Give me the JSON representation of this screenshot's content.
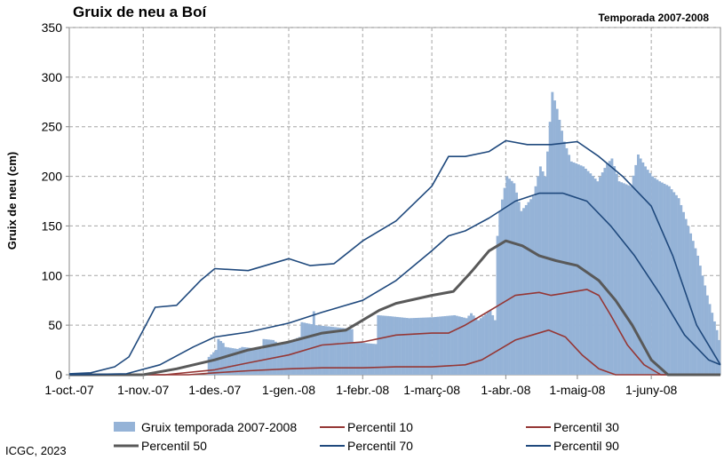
{
  "title": "Gruix de neu a Boí",
  "season_label": "Temporada 2007-2008",
  "credit": "ICGC, 2023",
  "chart_data": {
    "type": "bar",
    "title": "Gruix de neu a Boí",
    "subtitle": "Temporada 2007-2008",
    "ylabel": "Gruix de neu (cm)",
    "ylim": [
      0,
      350
    ],
    "yticks": [
      0,
      50,
      100,
      150,
      200,
      250,
      300,
      350
    ],
    "xlim": [
      "2007-10-01",
      "2008-06-30"
    ],
    "xticks": [
      {
        "label": "1-oct.-07",
        "date": "2007-10-01"
      },
      {
        "label": "1-nov.-07",
        "date": "2007-11-01"
      },
      {
        "label": "1-des.-07",
        "date": "2007-12-01"
      },
      {
        "label": "1-gen.-08",
        "date": "2008-01-01"
      },
      {
        "label": "1-febr.-08",
        "date": "2008-02-01"
      },
      {
        "label": "1-març-08",
        "date": "2008-03-01"
      },
      {
        "label": "1-abr.-08",
        "date": "2008-04-01"
      },
      {
        "label": "1-maig-08",
        "date": "2008-05-01"
      },
      {
        "label": "1-juny-08",
        "date": "2008-06-01"
      }
    ],
    "grid": true,
    "legend_position": "bottom",
    "series": [
      {
        "name": "Gruix temporada 2007-2008",
        "kind": "bar",
        "color": "#95b3d7",
        "points": [
          [
            "2007-10-01",
            0
          ],
          [
            "2007-11-27",
            0
          ],
          [
            "2007-11-28",
            18
          ],
          [
            "2007-12-01",
            25
          ],
          [
            "2007-12-02",
            36
          ],
          [
            "2007-12-04",
            32
          ],
          [
            "2007-12-05",
            28
          ],
          [
            "2007-12-10",
            26
          ],
          [
            "2007-12-12",
            28
          ],
          [
            "2007-12-20",
            26
          ],
          [
            "2007-12-21",
            36
          ],
          [
            "2007-12-25",
            35
          ],
          [
            "2007-12-28",
            30
          ],
          [
            "2008-01-05",
            38
          ],
          [
            "2008-01-06",
            53
          ],
          [
            "2008-01-10",
            51
          ],
          [
            "2008-01-11",
            64
          ],
          [
            "2008-01-12",
            50
          ],
          [
            "2008-01-20",
            48
          ],
          [
            "2008-01-27",
            46
          ],
          [
            "2008-01-28",
            33
          ],
          [
            "2008-02-06",
            31
          ],
          [
            "2008-02-07",
            60
          ],
          [
            "2008-02-12",
            59
          ],
          [
            "2008-02-20",
            57
          ],
          [
            "2008-03-01",
            58
          ],
          [
            "2008-03-10",
            60
          ],
          [
            "2008-03-15",
            57
          ],
          [
            "2008-03-17",
            62
          ],
          [
            "2008-03-20",
            55
          ],
          [
            "2008-03-25",
            65
          ],
          [
            "2008-03-27",
            55
          ],
          [
            "2008-03-28",
            140
          ],
          [
            "2008-03-29",
            165
          ],
          [
            "2008-04-01",
            200
          ],
          [
            "2008-04-04",
            193
          ],
          [
            "2008-04-07",
            165
          ],
          [
            "2008-04-12",
            180
          ],
          [
            "2008-04-15",
            210
          ],
          [
            "2008-04-17",
            200
          ],
          [
            "2008-04-18",
            225
          ],
          [
            "2008-04-20",
            285
          ],
          [
            "2008-04-22",
            268
          ],
          [
            "2008-04-25",
            235
          ],
          [
            "2008-04-28",
            215
          ],
          [
            "2008-05-03",
            210
          ],
          [
            "2008-05-06",
            203
          ],
          [
            "2008-05-09",
            195
          ],
          [
            "2008-05-13",
            213
          ],
          [
            "2008-05-15",
            218
          ],
          [
            "2008-05-18",
            195
          ],
          [
            "2008-05-23",
            190
          ],
          [
            "2008-05-26",
            222
          ],
          [
            "2008-05-29",
            210
          ],
          [
            "2008-06-01",
            200
          ],
          [
            "2008-06-04",
            195
          ],
          [
            "2008-06-08",
            190
          ],
          [
            "2008-06-12",
            178
          ],
          [
            "2008-06-16",
            150
          ],
          [
            "2008-06-20",
            120
          ],
          [
            "2008-06-24",
            80
          ],
          [
            "2008-06-28",
            45
          ],
          [
            "2008-06-30",
            25
          ]
        ]
      },
      {
        "name": "Percentil 10",
        "kind": "line",
        "color": "#953735",
        "points": [
          [
            "2007-10-01",
            0
          ],
          [
            "2007-11-20",
            0
          ],
          [
            "2007-12-01",
            2
          ],
          [
            "2007-12-15",
            4
          ],
          [
            "2008-01-01",
            6
          ],
          [
            "2008-01-15",
            7
          ],
          [
            "2008-02-01",
            7
          ],
          [
            "2008-02-15",
            8
          ],
          [
            "2008-03-01",
            8
          ],
          [
            "2008-03-15",
            10
          ],
          [
            "2008-03-22",
            15
          ],
          [
            "2008-03-29",
            25
          ],
          [
            "2008-04-05",
            35
          ],
          [
            "2008-04-12",
            40
          ],
          [
            "2008-04-19",
            45
          ],
          [
            "2008-04-26",
            38
          ],
          [
            "2008-05-03",
            20
          ],
          [
            "2008-05-10",
            6
          ],
          [
            "2008-05-17",
            0
          ],
          [
            "2008-06-30",
            0
          ]
        ]
      },
      {
        "name": "Percentil 30",
        "kind": "line",
        "color": "#953735",
        "points": [
          [
            "2007-10-01",
            0
          ],
          [
            "2007-11-10",
            0
          ],
          [
            "2007-12-01",
            5
          ],
          [
            "2007-12-15",
            12
          ],
          [
            "2008-01-01",
            20
          ],
          [
            "2008-01-15",
            30
          ],
          [
            "2008-02-01",
            33
          ],
          [
            "2008-02-15",
            40
          ],
          [
            "2008-03-01",
            42
          ],
          [
            "2008-03-08",
            42
          ],
          [
            "2008-03-15",
            50
          ],
          [
            "2008-03-22",
            60
          ],
          [
            "2008-03-29",
            70
          ],
          [
            "2008-04-05",
            80
          ],
          [
            "2008-04-15",
            83
          ],
          [
            "2008-04-20",
            80
          ],
          [
            "2008-04-25",
            82
          ],
          [
            "2008-05-05",
            86
          ],
          [
            "2008-05-10",
            80
          ],
          [
            "2008-05-15",
            60
          ],
          [
            "2008-05-22",
            30
          ],
          [
            "2008-05-29",
            10
          ],
          [
            "2008-06-05",
            0
          ],
          [
            "2008-06-30",
            0
          ]
        ]
      },
      {
        "name": "Percentil 50",
        "kind": "line",
        "color": "#595959",
        "points": [
          [
            "2007-10-01",
            0
          ],
          [
            "2007-11-01",
            0
          ],
          [
            "2007-11-15",
            6
          ],
          [
            "2007-12-01",
            15
          ],
          [
            "2007-12-15",
            25
          ],
          [
            "2008-01-01",
            33
          ],
          [
            "2008-01-15",
            42
          ],
          [
            "2008-01-25",
            45
          ],
          [
            "2008-02-01",
            55
          ],
          [
            "2008-02-08",
            65
          ],
          [
            "2008-02-15",
            72
          ],
          [
            "2008-03-01",
            80
          ],
          [
            "2008-03-10",
            84
          ],
          [
            "2008-03-18",
            105
          ],
          [
            "2008-03-25",
            125
          ],
          [
            "2008-04-01",
            135
          ],
          [
            "2008-04-08",
            130
          ],
          [
            "2008-04-15",
            120
          ],
          [
            "2008-04-22",
            115
          ],
          [
            "2008-05-01",
            110
          ],
          [
            "2008-05-10",
            95
          ],
          [
            "2008-05-17",
            75
          ],
          [
            "2008-05-24",
            50
          ],
          [
            "2008-06-01",
            15
          ],
          [
            "2008-06-08",
            0
          ],
          [
            "2008-06-30",
            0
          ]
        ]
      },
      {
        "name": "Percentil 70",
        "kind": "line",
        "color": "#1f497d",
        "points": [
          [
            "2007-10-01",
            0
          ],
          [
            "2007-10-25",
            1
          ],
          [
            "2007-11-08",
            10
          ],
          [
            "2007-11-22",
            28
          ],
          [
            "2007-12-01",
            38
          ],
          [
            "2007-12-15",
            43
          ],
          [
            "2008-01-01",
            52
          ],
          [
            "2008-01-15",
            63
          ],
          [
            "2008-02-01",
            75
          ],
          [
            "2008-02-15",
            95
          ],
          [
            "2008-03-01",
            125
          ],
          [
            "2008-03-08",
            140
          ],
          [
            "2008-03-15",
            145
          ],
          [
            "2008-03-25",
            158
          ],
          [
            "2008-04-05",
            175
          ],
          [
            "2008-04-15",
            183
          ],
          [
            "2008-04-25",
            183
          ],
          [
            "2008-05-05",
            175
          ],
          [
            "2008-05-15",
            150
          ],
          [
            "2008-05-25",
            120
          ],
          [
            "2008-06-05",
            80
          ],
          [
            "2008-06-15",
            40
          ],
          [
            "2008-06-25",
            15
          ],
          [
            "2008-06-30",
            10
          ]
        ]
      },
      {
        "name": "Percentil 90",
        "kind": "line",
        "color": "#1f497d",
        "points": [
          [
            "2007-10-01",
            1
          ],
          [
            "2007-10-10",
            2
          ],
          [
            "2007-10-20",
            8
          ],
          [
            "2007-10-26",
            18
          ],
          [
            "2007-11-01",
            45
          ],
          [
            "2007-11-06",
            68
          ],
          [
            "2007-11-15",
            70
          ],
          [
            "2007-11-25",
            95
          ],
          [
            "2007-12-01",
            107
          ],
          [
            "2007-12-15",
            105
          ],
          [
            "2008-01-01",
            117
          ],
          [
            "2008-01-10",
            110
          ],
          [
            "2008-01-20",
            112
          ],
          [
            "2008-02-01",
            135
          ],
          [
            "2008-02-15",
            155
          ],
          [
            "2008-03-01",
            190
          ],
          [
            "2008-03-08",
            220
          ],
          [
            "2008-03-15",
            220
          ],
          [
            "2008-03-25",
            225
          ],
          [
            "2008-04-01",
            236
          ],
          [
            "2008-04-10",
            232
          ],
          [
            "2008-04-20",
            232
          ],
          [
            "2008-05-01",
            235
          ],
          [
            "2008-05-10",
            220
          ],
          [
            "2008-05-20",
            200
          ],
          [
            "2008-06-01",
            170
          ],
          [
            "2008-06-10",
            120
          ],
          [
            "2008-06-20",
            50
          ],
          [
            "2008-06-30",
            10
          ]
        ]
      }
    ]
  }
}
